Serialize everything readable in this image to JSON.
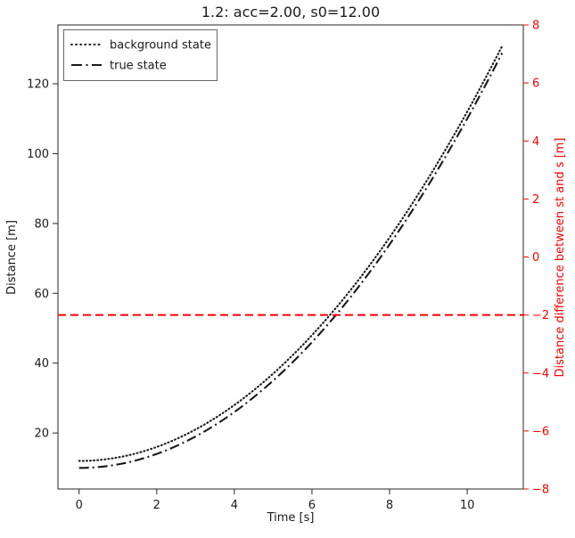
{
  "title": "1.2: acc=2.00, s0=12.00",
  "axes": {
    "xlabel": "Time [s]",
    "ylabel_left": "Distance [m]",
    "ylabel_right": "Distance difference between st and s [m]",
    "xticks": [
      0,
      2,
      4,
      6,
      8,
      10
    ],
    "yticks_left": [
      20,
      40,
      60,
      80,
      100,
      120
    ],
    "yticks_right": [
      -8,
      -6,
      -4,
      -2,
      0,
      2,
      4,
      6,
      8
    ],
    "xlim": [
      -0.545,
      11.445
    ],
    "ylim_left": [
      3.96,
      136.85
    ],
    "ylim_right": [
      -8,
      8
    ]
  },
  "legend": {
    "items": [
      {
        "label": "background state",
        "linestyle": "dotted",
        "color": "#1a1a1a"
      },
      {
        "label": "true state",
        "linestyle": "dashdot",
        "color": "#1a1a1a"
      }
    ]
  },
  "colors": {
    "curve_black": "#1a1a1a",
    "accent_red": "#ff0000",
    "spine": "#262626",
    "legend_border": "#666666"
  },
  "chart_data": {
    "type": "line",
    "title": "1.2: acc=2.00, s0=12.00",
    "xlabel": "Time [s]",
    "ylabel": "Distance [m]",
    "ylabel_right": "Distance difference between st and s [m]",
    "xlim": [
      -0.545,
      11.445
    ],
    "ylim_left": [
      3.96,
      136.85
    ],
    "ylim_right": [
      -8,
      8
    ],
    "grid": false,
    "legend_position": "upper left",
    "model": {
      "acc": 2.0,
      "s0_background": 12.0,
      "s0_true": 10.0,
      "t_start": 0.0,
      "t_end": 10.9,
      "t_step": 0.1,
      "difference_constant": -2.0
    },
    "sampled_t": [
      0,
      1,
      2,
      3,
      4,
      5,
      6,
      7,
      8,
      9,
      10,
      10.9
    ],
    "series": [
      {
        "name": "background state",
        "axis": "left",
        "style": "dotted",
        "color": "#1a1a1a",
        "formula": "s(t) = 12 + 0.5*2*t^2",
        "values": [
          12,
          13,
          16,
          21,
          28,
          37,
          48,
          61,
          76,
          93,
          112,
          130.81
        ]
      },
      {
        "name": "true state",
        "axis": "left",
        "style": "dashdot",
        "color": "#1a1a1a",
        "formula": "st(t) = 10 + 0.5*2*t^2",
        "values": [
          10,
          11,
          14,
          19,
          26,
          35,
          46,
          59,
          74,
          91,
          110,
          128.81
        ]
      },
      {
        "name": "distance difference st - s",
        "axis": "right",
        "style": "dashed",
        "color": "#ff0000",
        "constant_value": -2,
        "values": [
          -2,
          -2,
          -2,
          -2,
          -2,
          -2,
          -2,
          -2,
          -2,
          -2,
          -2,
          -2
        ]
      }
    ]
  }
}
